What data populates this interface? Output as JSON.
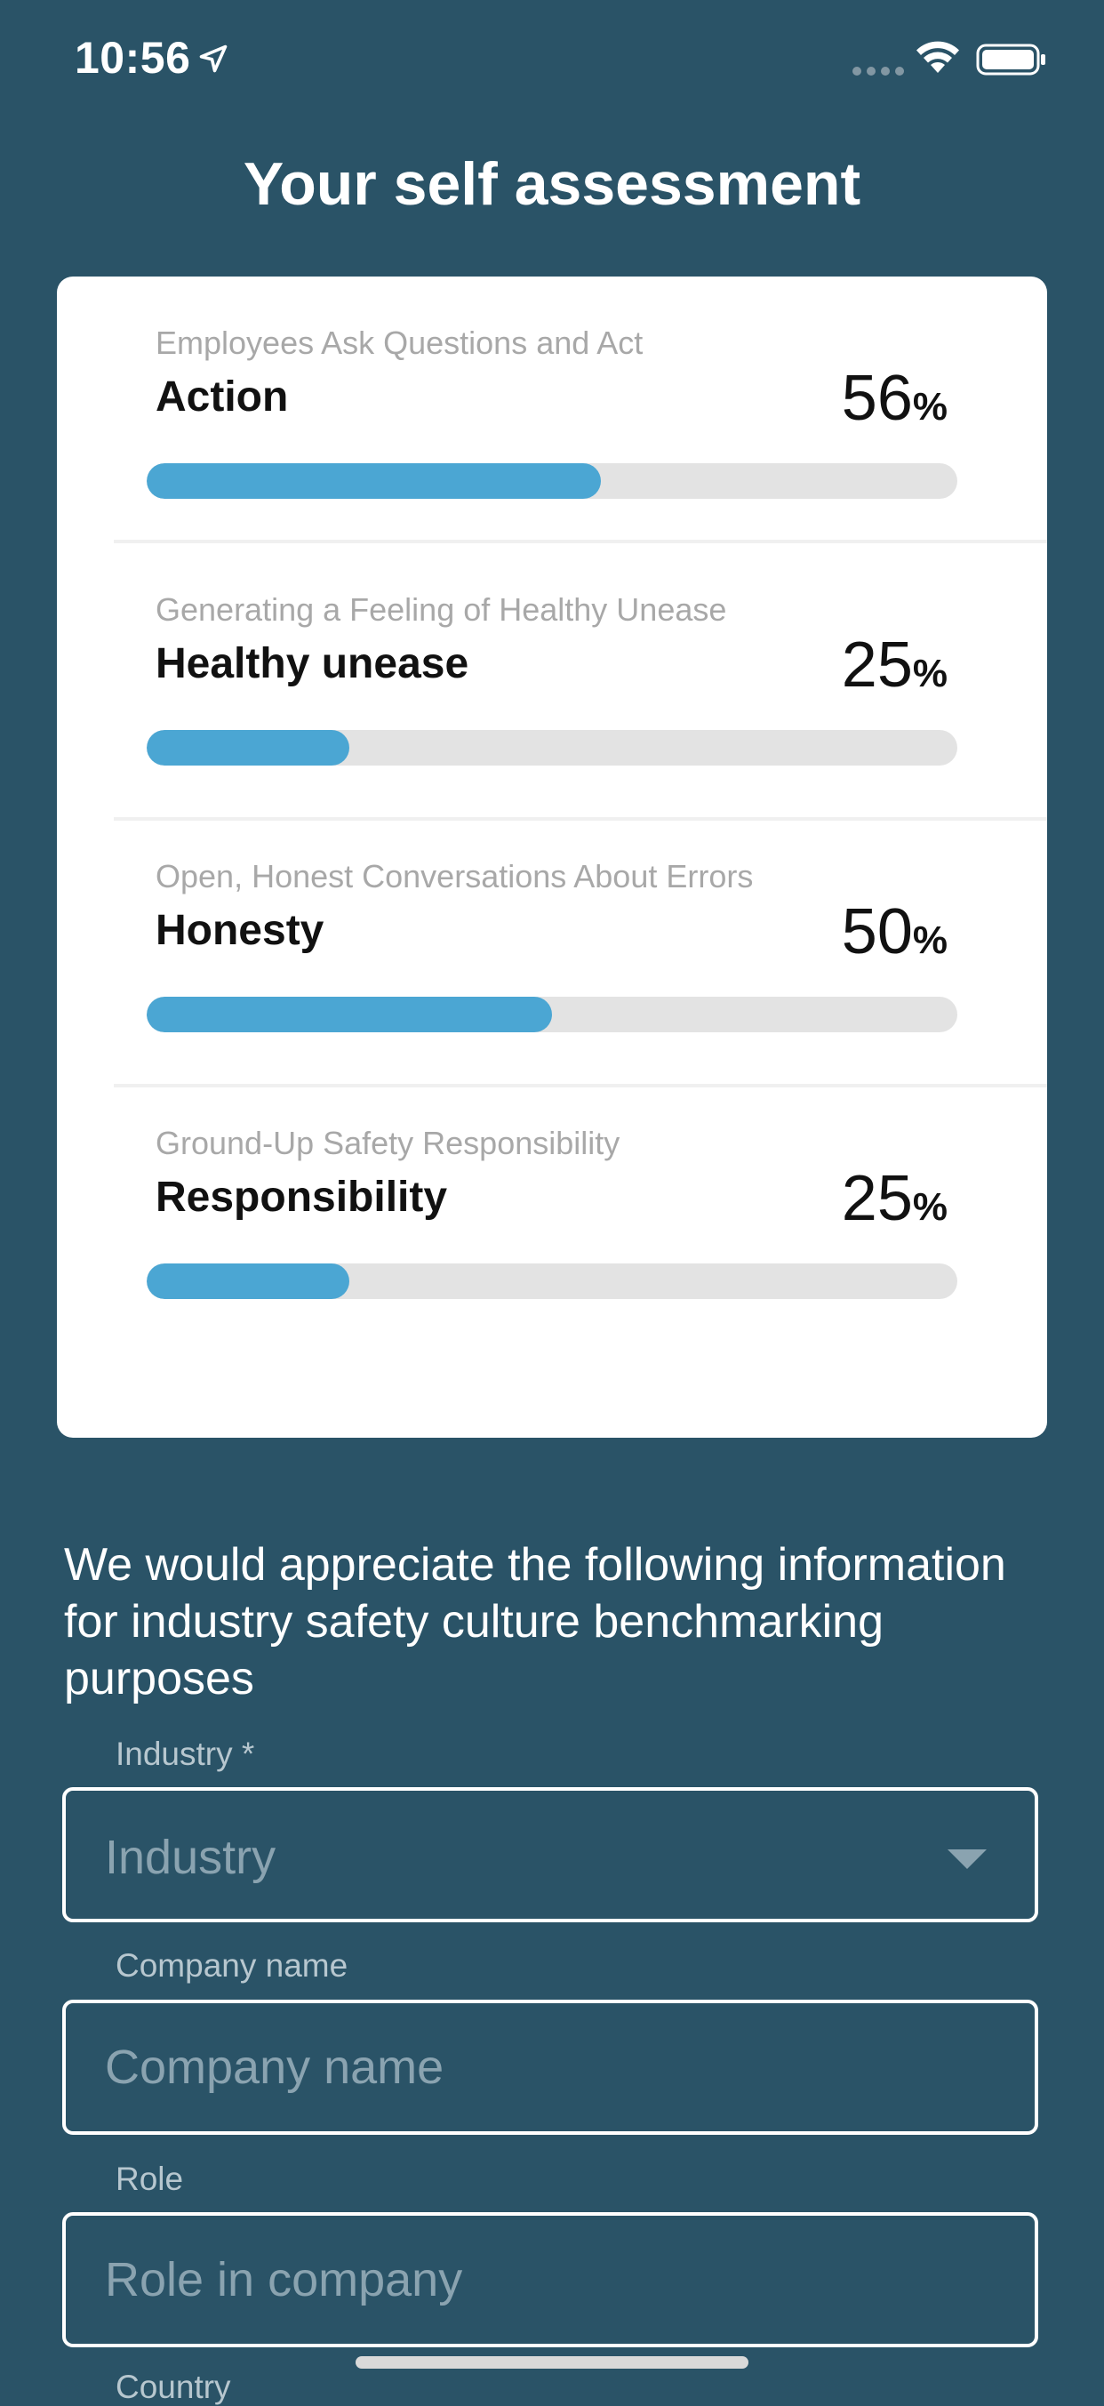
{
  "status_bar": {
    "time": "10:56"
  },
  "title": "Your self assessment",
  "colors": {
    "background": "#2a5367",
    "bar_fill": "#4ba6d3",
    "bar_track": "#e3e3e3"
  },
  "scores": [
    {
      "subtitle": "Employees Ask Questions and Act",
      "label": "Action",
      "value": "56",
      "percent_sign": "%",
      "fraction": 0.56
    },
    {
      "subtitle": "Generating a Feeling of Healthy Unease",
      "label": "Healthy unease",
      "value": "25",
      "percent_sign": "%",
      "fraction": 0.25
    },
    {
      "subtitle": "Open, Honest Conversations About Errors",
      "label": "Honesty",
      "value": "50",
      "percent_sign": "%",
      "fraction": 0.5
    },
    {
      "subtitle": "Ground-Up Safety Responsibility",
      "label": "Responsibility",
      "value": "25",
      "percent_sign": "%",
      "fraction": 0.25
    }
  ],
  "form": {
    "intro": "We would appreciate the following information for industry safety culture benchmarking purposes",
    "industry": {
      "label": "Industry *",
      "placeholder": "Industry"
    },
    "company": {
      "label": "Company name",
      "placeholder": "Company name"
    },
    "role": {
      "label": "Role",
      "placeholder": "Role in company"
    },
    "country": {
      "label": "Country"
    }
  }
}
